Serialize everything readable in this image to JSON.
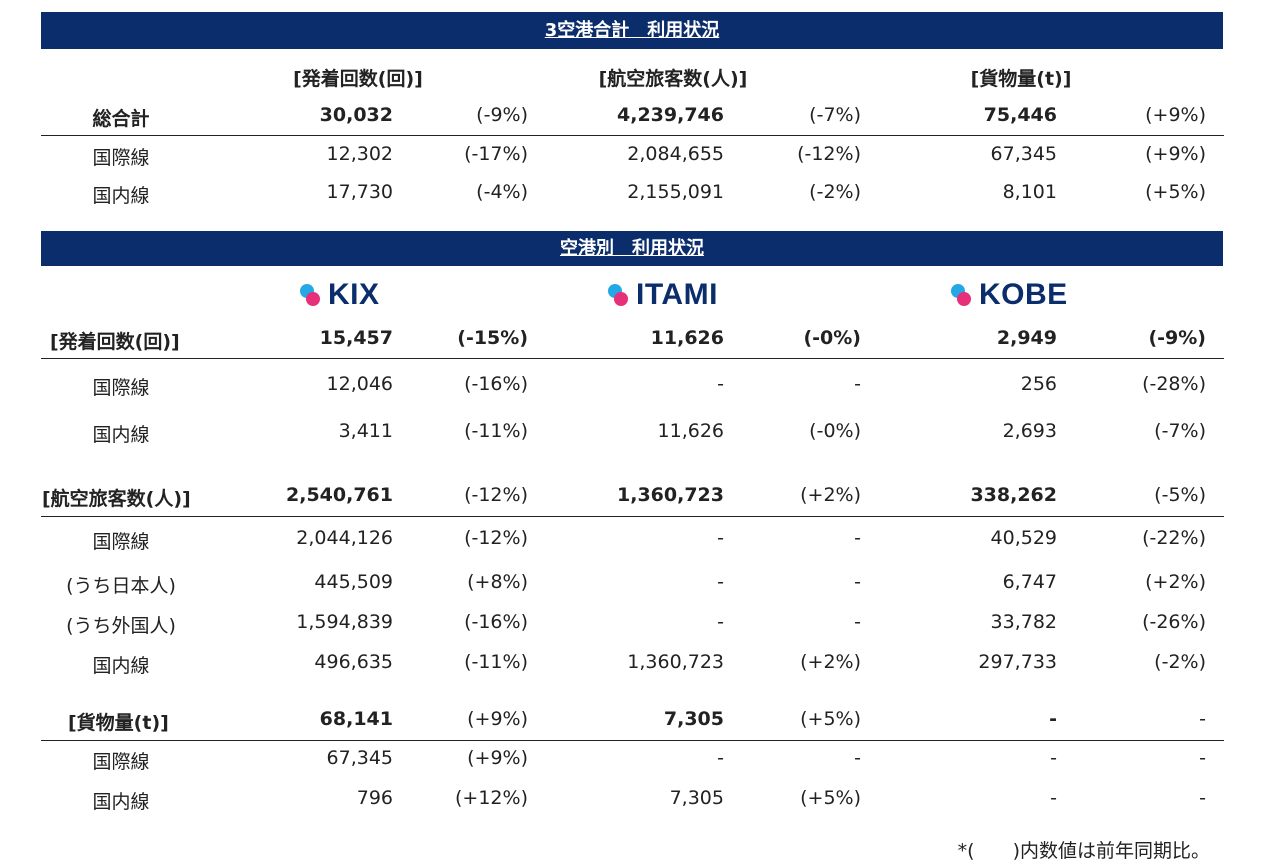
{
  "total": {
    "banner": "3空港合計　利用状況",
    "headers": [
      "[発着回数(回)]",
      "[航空旅客数(人)]",
      "[貨物量(t)]"
    ],
    "rows": [
      {
        "label": "総合計",
        "cells": [
          "30,032",
          "(-9%)",
          "4,239,746",
          "(-7%)",
          "75,446",
          "(+9%)"
        ]
      },
      {
        "label": "国際線",
        "cells": [
          "12,302",
          "(-17%)",
          "2,084,655",
          "(-12%)",
          "67,345",
          "(+9%)"
        ]
      },
      {
        "label": "国内線",
        "cells": [
          "17,730",
          "(-4%)",
          "2,155,091",
          "(-2%)",
          "8,101",
          "(+5%)"
        ]
      }
    ]
  },
  "by_airport": {
    "banner": "空港別　利用状況",
    "logos": [
      "KIX",
      "ITAMI",
      "KOBE"
    ],
    "rows": [
      {
        "label": "[発着回数(回)]",
        "cells": [
          "15,457",
          "(-15%)",
          "11,626",
          "(-0%)",
          "2,949",
          "(-9%)"
        ]
      },
      {
        "label": "国際線",
        "cells": [
          "12,046",
          "(-16%)",
          "-",
          "-",
          "256",
          "(-28%)"
        ]
      },
      {
        "label": "国内線",
        "cells": [
          "3,411",
          "(-11%)",
          "11,626",
          "(-0%)",
          "2,693",
          "(-7%)"
        ]
      },
      {
        "label": "[航空旅客数(人)]",
        "cells": [
          "2,540,761",
          "(-12%)",
          "1,360,723",
          "(+2%)",
          "338,262",
          "(-5%)"
        ]
      },
      {
        "label": "国際線",
        "cells": [
          "2,044,126",
          "(-12%)",
          "-",
          "-",
          "40,529",
          "(-22%)"
        ]
      },
      {
        "label": "(うち日本人)",
        "cells": [
          "445,509",
          "(+8%)",
          "-",
          "-",
          "6,747",
          "(+2%)"
        ]
      },
      {
        "label": "(うち外国人)",
        "cells": [
          "1,594,839",
          "(-16%)",
          "-",
          "-",
          "33,782",
          "(-26%)"
        ]
      },
      {
        "label": "国内線",
        "cells": [
          "496,635",
          "(-11%)",
          "1,360,723",
          "(+2%)",
          "297,733",
          "(-2%)"
        ]
      },
      {
        "label": "[貨物量(t)]",
        "cells": [
          "68,141",
          "(+9%)",
          "7,305",
          "(+5%)",
          "-",
          "-"
        ]
      },
      {
        "label": "国際線",
        "cells": [
          "67,345",
          "(+9%)",
          "-",
          "-",
          "-",
          "-"
        ]
      },
      {
        "label": "国内線",
        "cells": [
          "796",
          "(+12%)",
          "7,305",
          "(+5%)",
          "-",
          "-"
        ]
      }
    ]
  },
  "footnote": "*(　　)内数値は前年同期比。"
}
